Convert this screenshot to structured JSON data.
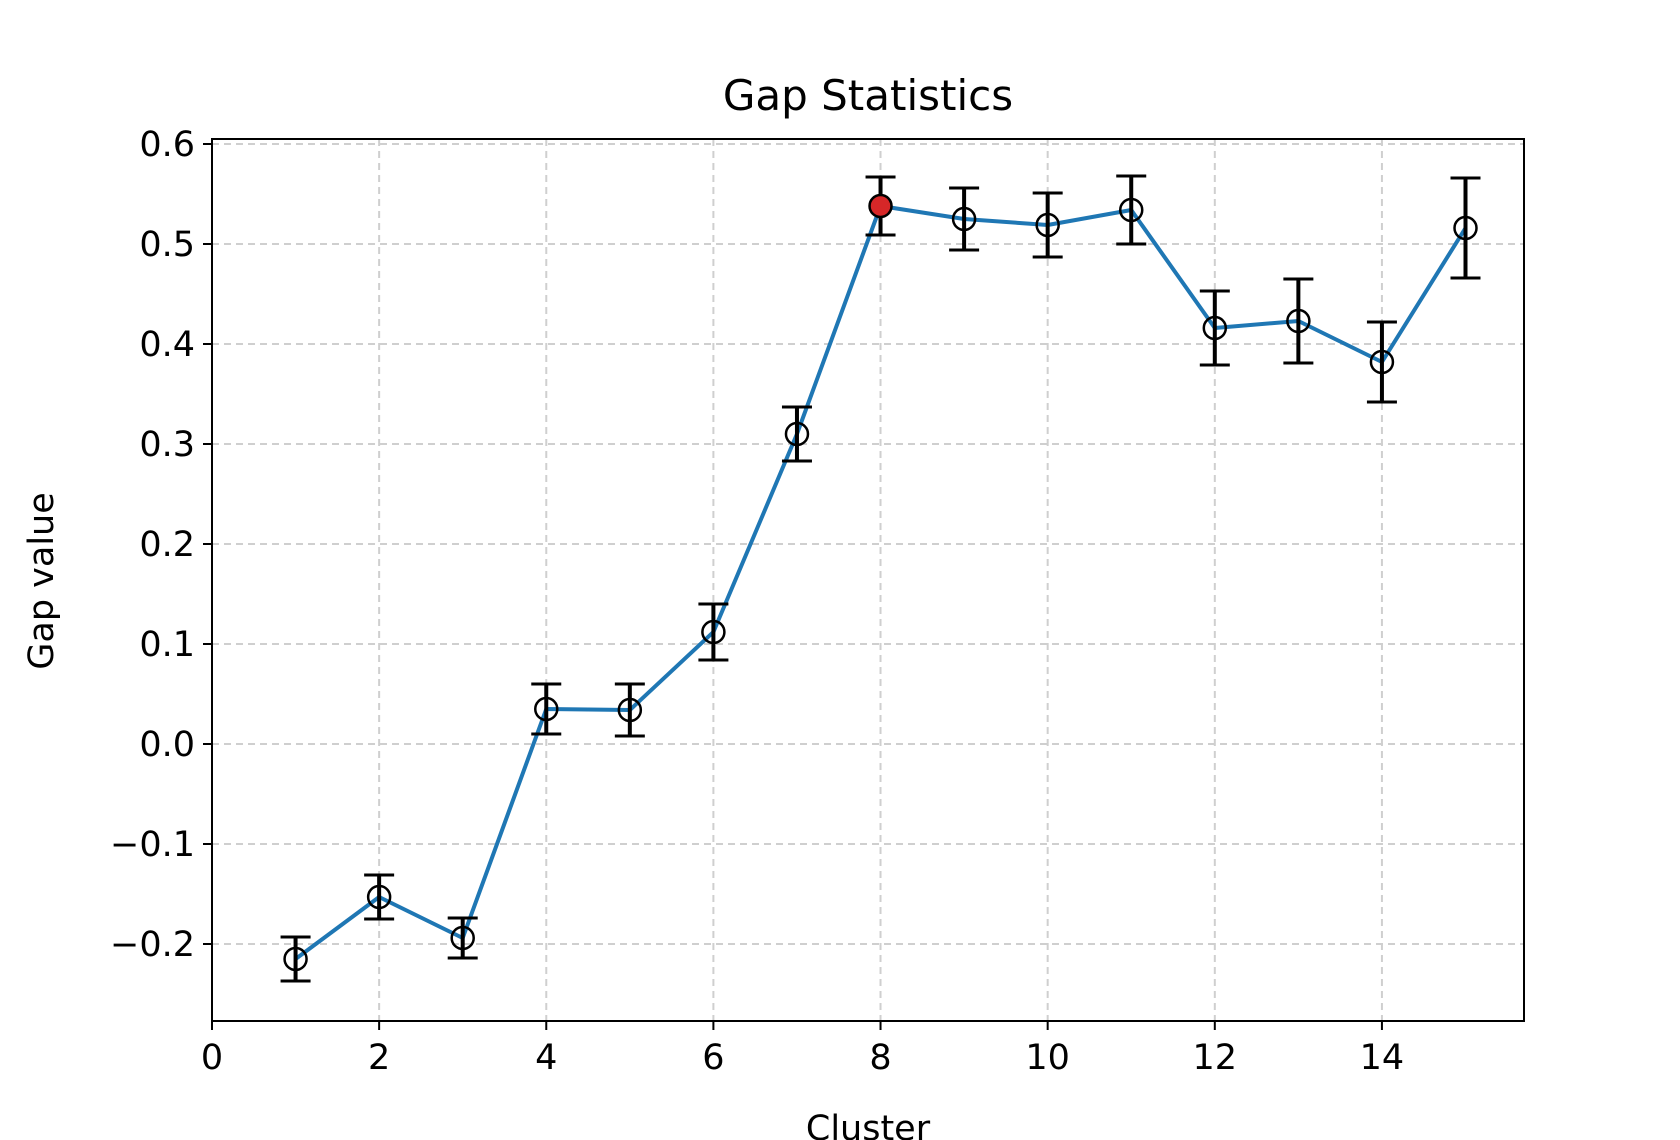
{
  "chart_data": {
    "type": "line",
    "title": "Gap Statistics",
    "xlabel": "Cluster",
    "ylabel": "Gap value",
    "xlim": [
      0,
      15.7
    ],
    "ylim": [
      -0.277,
      0.605
    ],
    "x_ticks": [
      0,
      2,
      4,
      6,
      8,
      10,
      12,
      14
    ],
    "x_tick_labels": [
      "0",
      "2",
      "4",
      "6",
      "8",
      "10",
      "12",
      "14"
    ],
    "y_ticks": [
      0.6,
      0.5,
      0.4,
      0.3,
      0.2,
      0.1,
      0.0,
      -0.1,
      -0.2
    ],
    "y_tick_labels": [
      "0.6",
      "0.5",
      "0.4",
      "0.3",
      "0.2",
      "0.1",
      "0.0",
      "−0.1",
      "−0.2"
    ],
    "grid": true,
    "grid_style": "dashed",
    "series": [
      {
        "x": [
          1,
          2,
          3,
          4,
          5,
          6,
          7,
          8,
          9,
          10,
          11,
          12,
          13,
          14,
          15
        ],
        "y": [
          -0.215,
          -0.153,
          -0.194,
          0.035,
          0.034,
          0.112,
          0.31,
          0.538,
          0.525,
          0.519,
          0.534,
          0.416,
          0.423,
          0.382,
          0.516
        ],
        "error": [
          0.022,
          0.022,
          0.02,
          0.025,
          0.026,
          0.028,
          0.027,
          0.029,
          0.031,
          0.032,
          0.034,
          0.037,
          0.042,
          0.04,
          0.05
        ]
      }
    ],
    "highlight_x": 8,
    "colors": {
      "line": "#1f77b4",
      "marker_edge": "#000000",
      "errorbar": "#000000",
      "highlight": "#d62728",
      "grid": "#cfcfcf"
    }
  }
}
